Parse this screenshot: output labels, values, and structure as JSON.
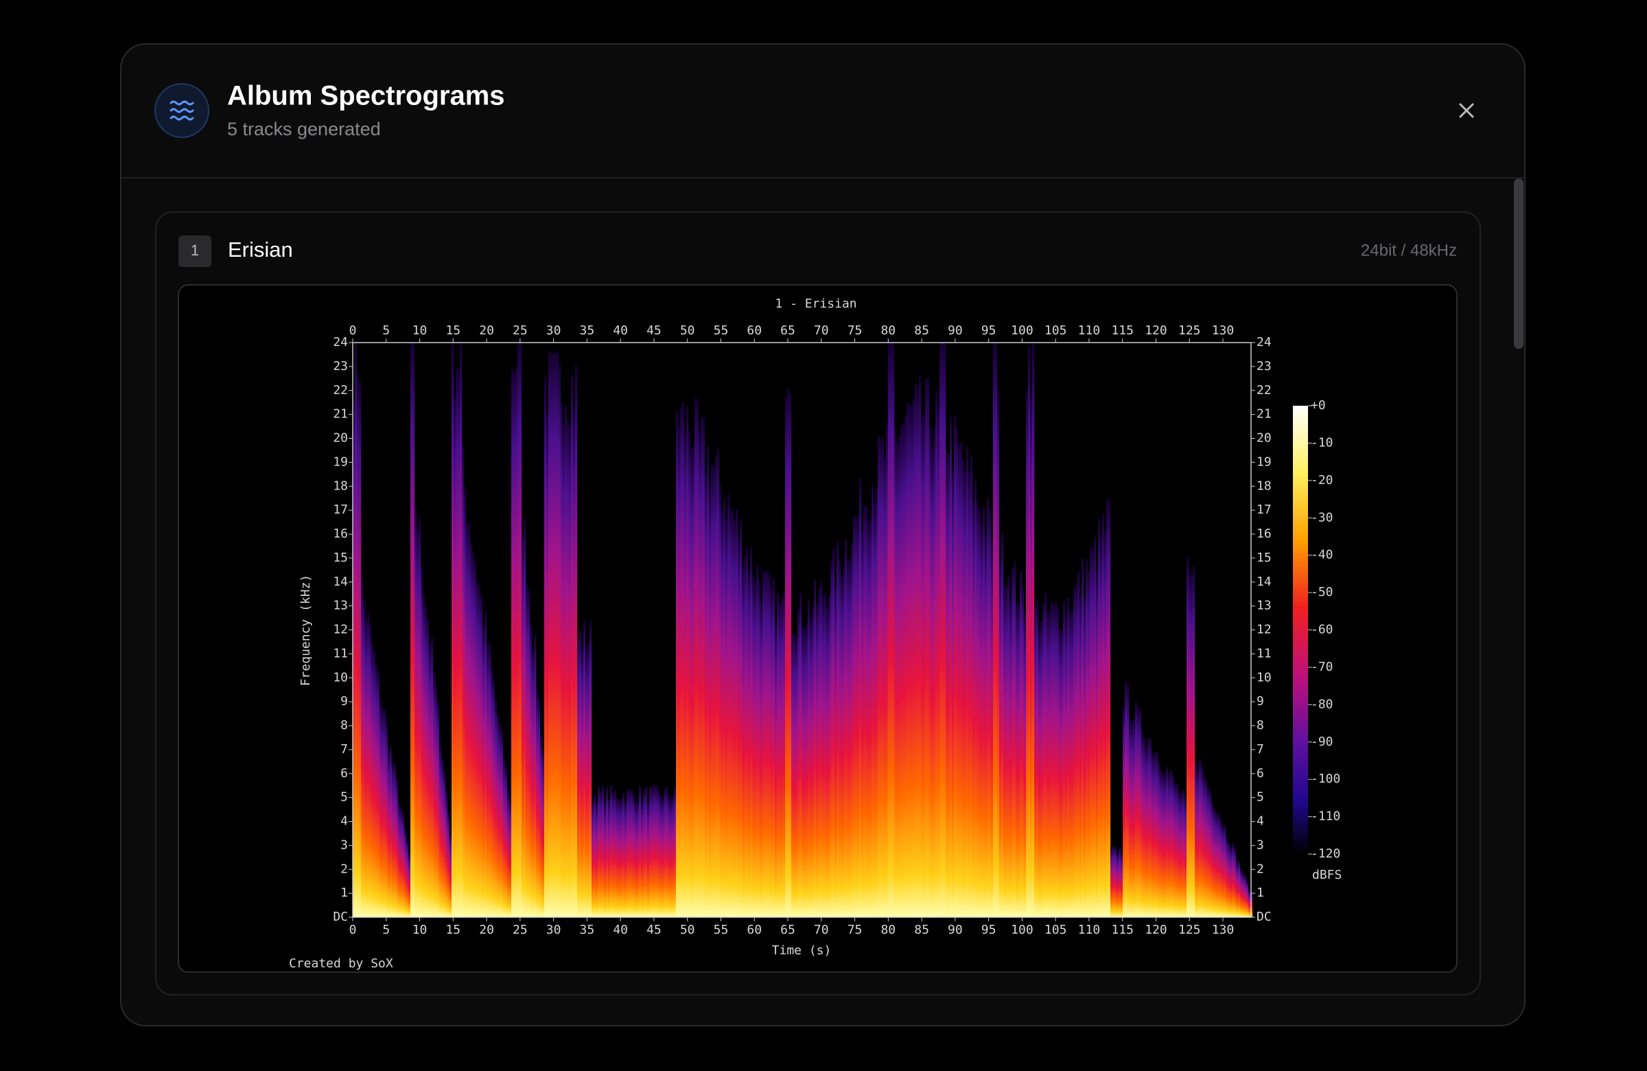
{
  "header": {
    "title": "Album Spectrograms",
    "subtitle": "5 tracks generated"
  },
  "tracks": [
    {
      "number": "1",
      "name": "Erisian",
      "format": "24bit / 48kHz",
      "spectrogram": {
        "title": "1 - Erisian",
        "x_label": "Time (s)",
        "y_label": "Frequency (kHz)",
        "x_ticks": [
          "0",
          "5",
          "10",
          "15",
          "20",
          "25",
          "30",
          "35",
          "40",
          "45",
          "50",
          "55",
          "60",
          "65",
          "70",
          "75",
          "80",
          "85",
          "90",
          "95",
          "100",
          "105",
          "110",
          "115",
          "120",
          "125",
          "130"
        ],
        "y_ticks": [
          "DC",
          "1",
          "2",
          "3",
          "4",
          "5",
          "6",
          "7",
          "8",
          "9",
          "10",
          "11",
          "12",
          "13",
          "14",
          "15",
          "16",
          "17",
          "18",
          "19",
          "20",
          "21",
          "22",
          "23",
          "24"
        ],
        "colorbar_ticks": [
          "+0",
          "-10",
          "-20",
          "-30",
          "-40",
          "-50",
          "-60",
          "-70",
          "-80",
          "-90",
          "-100",
          "-110",
          "-120"
        ],
        "colorbar_unit": "dBFS",
        "credit": "Created by SoX"
      }
    }
  ]
}
